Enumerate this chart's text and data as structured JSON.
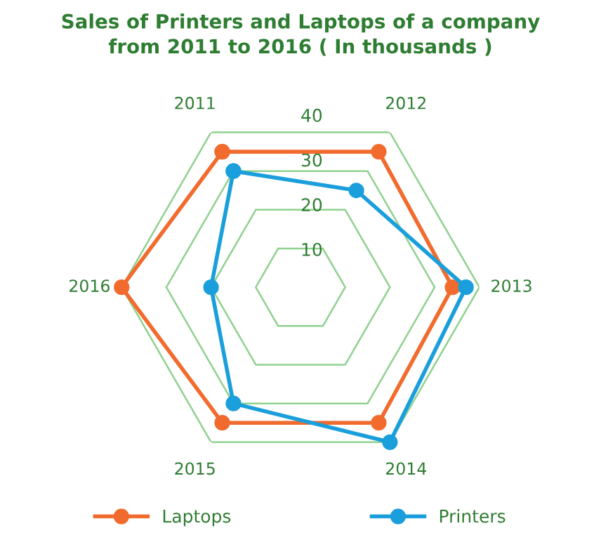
{
  "chart_data": {
    "type": "radar",
    "title": "Sales of Printers and Laptops of a company\nfrom 2011 to 2016 ( In thousands )",
    "categories": [
      "2011",
      "2012",
      "2013",
      "2014",
      "2015",
      "2016"
    ],
    "series": [
      {
        "name": "Laptops",
        "color": "#f26b2e",
        "values": [
          35,
          35,
          34,
          35,
          35,
          40
        ]
      },
      {
        "name": "Printers",
        "color": "#1a9fdc",
        "values": [
          30,
          25,
          37,
          40,
          30,
          20
        ]
      }
    ],
    "ylim": [
      0,
      40
    ],
    "yticks": [
      10,
      20,
      30,
      40
    ],
    "grid": true,
    "legend": "bottom",
    "marker": "circle"
  }
}
